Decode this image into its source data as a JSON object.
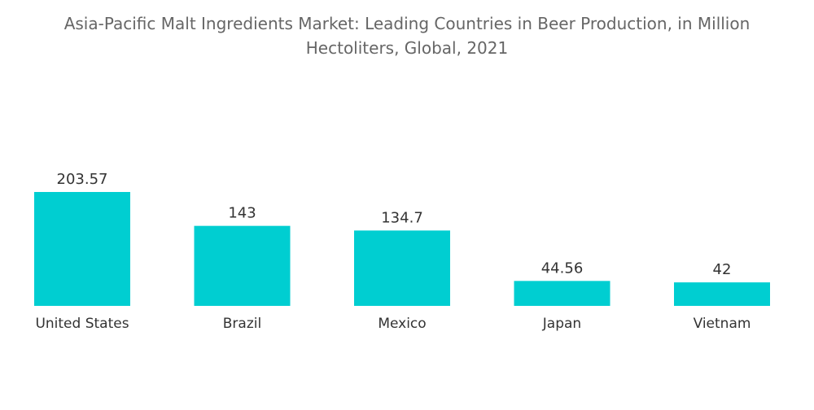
{
  "chart_data": {
    "type": "bar",
    "title": "Asia-Pacific Malt Ingredients Market: Leading Countries in Beer Production, in Million Hectoliters, Global, 2021",
    "categories": [
      "United States",
      "Brazil",
      "Mexico",
      "Japan",
      "Vietnam"
    ],
    "values": [
      203.57,
      143,
      134.7,
      44.56,
      42
    ],
    "value_labels": [
      "203.57",
      "143",
      "134.7",
      "44.56",
      "42"
    ],
    "xlabel": "",
    "ylabel": "",
    "ylim": [
      0,
      203.57
    ],
    "grid": false,
    "legend": "none",
    "colors": {
      "bar": "#00CED1"
    }
  }
}
